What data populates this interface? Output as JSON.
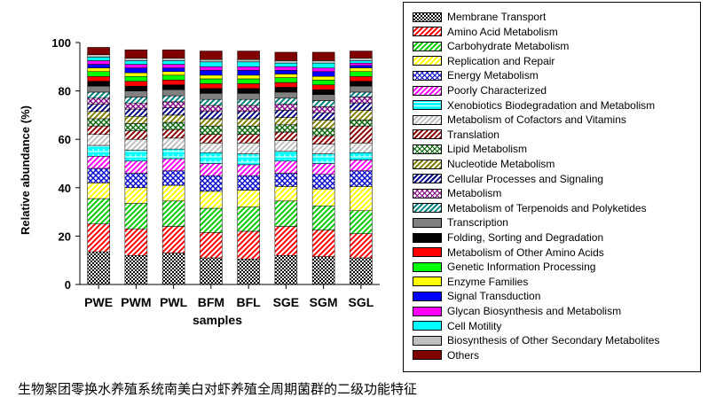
{
  "chart_data": {
    "type": "bar",
    "stacked": true,
    "xlabel": "samples",
    "ylabel": "Relative abundance (%)",
    "ylim": [
      0,
      100
    ],
    "yticks": [
      0,
      20,
      40,
      60,
      80,
      100
    ],
    "categories": [
      "PWE",
      "PWM",
      "PWL",
      "BFM",
      "BFL",
      "SGE",
      "SGM",
      "SGL"
    ],
    "legend_position": "right",
    "series": [
      {
        "name": "Membrane Transport",
        "color": "#000000",
        "pattern": "checker",
        "values": [
          13.5,
          12.0,
          13.0,
          11.0,
          10.5,
          12.0,
          11.5,
          11.0
        ]
      },
      {
        "name": "Amino Acid Metabolism",
        "color": "#ff0000",
        "pattern": "diag",
        "values": [
          11.5,
          11.0,
          11.0,
          10.5,
          11.5,
          12.0,
          11.0,
          10.0
        ]
      },
      {
        "name": "Carbohydrate Metabolism",
        "color": "#00cc00",
        "pattern": "diag",
        "values": [
          10.5,
          10.5,
          10.5,
          10.0,
          10.0,
          10.5,
          10.0,
          9.5
        ]
      },
      {
        "name": "Replication and Repair",
        "color": "#ffff00",
        "pattern": "diag",
        "values": [
          6.5,
          6.5,
          6.5,
          7.0,
          7.0,
          6.0,
          7.0,
          10.0
        ]
      },
      {
        "name": "Energy Metabolism",
        "color": "#0000cc",
        "pattern": "cross",
        "values": [
          6.0,
          6.0,
          6.0,
          6.5,
          6.0,
          5.5,
          6.0,
          6.5
        ]
      },
      {
        "name": "Poorly Characterized",
        "color": "#ff00ff",
        "pattern": "diag",
        "values": [
          5.0,
          5.0,
          5.0,
          5.0,
          4.5,
          5.0,
          4.5,
          4.5
        ]
      },
      {
        "name": "Xenobiotics Biodegradation and Metabolism",
        "color": "#00ffff",
        "pattern": "bricks",
        "values": [
          4.5,
          4.5,
          4.0,
          4.5,
          4.5,
          4.0,
          4.0,
          3.0
        ]
      },
      {
        "name": "Metabolism of Cofactors and Vitamins",
        "color": "#c0c0c0",
        "pattern": "diag",
        "values": [
          4.5,
          4.5,
          4.5,
          4.0,
          4.5,
          4.5,
          4.0,
          4.0
        ]
      },
      {
        "name": "Translation",
        "color": "#8b0000",
        "pattern": "diag",
        "values": [
          3.5,
          3.5,
          3.5,
          3.5,
          3.5,
          3.5,
          3.5,
          7.0
        ]
      },
      {
        "name": "Lipid Metabolism",
        "color": "#006400",
        "pattern": "cross",
        "values": [
          3.0,
          3.0,
          3.0,
          3.5,
          3.5,
          3.0,
          3.0,
          2.5
        ]
      },
      {
        "name": "Nucleotide Metabolism",
        "color": "#808000",
        "pattern": "diag",
        "values": [
          3.0,
          3.0,
          3.0,
          3.0,
          3.0,
          3.0,
          3.5,
          4.0
        ]
      },
      {
        "name": "Cellular Processes and Signaling",
        "color": "#000080",
        "pattern": "diag",
        "values": [
          3.0,
          3.0,
          3.0,
          3.0,
          3.0,
          3.0,
          3.0,
          3.0
        ]
      },
      {
        "name": "Metabolism",
        "color": "#800080",
        "pattern": "cross",
        "values": [
          2.5,
          2.5,
          2.5,
          2.5,
          2.5,
          2.5,
          2.5,
          2.5
        ]
      },
      {
        "name": "Metabolism of Terpenoids and Polyketides",
        "color": "#008080",
        "pattern": "diag",
        "values": [
          2.5,
          2.5,
          2.5,
          2.5,
          2.5,
          2.5,
          2.5,
          2.0
        ]
      },
      {
        "name": "Transcription",
        "color": "#808080",
        "pattern": "solid",
        "values": [
          2.5,
          2.5,
          2.5,
          2.5,
          2.5,
          2.5,
          2.5,
          2.5
        ]
      },
      {
        "name": "Folding, Sorting and Degradation",
        "color": "#000000",
        "pattern": "solid",
        "values": [
          2.0,
          2.0,
          2.0,
          2.0,
          2.0,
          2.0,
          2.0,
          2.0
        ]
      },
      {
        "name": "Metabolism of Other Amino Acids",
        "color": "#ff0000",
        "pattern": "solid",
        "values": [
          2.0,
          2.0,
          2.0,
          2.0,
          2.0,
          2.0,
          2.0,
          2.0
        ]
      },
      {
        "name": "Genetic Information Processing",
        "color": "#00ff00",
        "pattern": "solid",
        "values": [
          2.0,
          2.0,
          2.0,
          2.0,
          2.0,
          2.0,
          2.0,
          2.0
        ]
      },
      {
        "name": "Enzyme Families",
        "color": "#ffff00",
        "pattern": "solid",
        "values": [
          1.5,
          1.5,
          1.5,
          1.5,
          1.5,
          1.5,
          1.5,
          1.5
        ]
      },
      {
        "name": "Signal Transduction",
        "color": "#0000ff",
        "pattern": "solid",
        "values": [
          1.5,
          2.0,
          1.5,
          2.0,
          2.0,
          1.5,
          2.0,
          1.0
        ]
      },
      {
        "name": "Glycan Biosynthesis and Metabolism",
        "color": "#ff00ff",
        "pattern": "solid",
        "values": [
          1.5,
          1.5,
          1.5,
          1.5,
          1.5,
          1.5,
          1.5,
          1.0
        ]
      },
      {
        "name": "Cell Motility",
        "color": "#00ffff",
        "pattern": "solid",
        "values": [
          1.5,
          1.5,
          1.5,
          2.0,
          2.0,
          1.5,
          2.0,
          1.0
        ]
      },
      {
        "name": "Biosynthesis of Other Secondary Metabolites",
        "color": "#c0c0c0",
        "pattern": "solid",
        "values": [
          1.0,
          1.0,
          1.0,
          1.0,
          1.0,
          1.0,
          1.0,
          1.0
        ]
      },
      {
        "name": "Others",
        "color": "#800000",
        "pattern": "solid",
        "values": [
          3.0,
          3.5,
          3.5,
          3.5,
          3.5,
          3.5,
          3.5,
          3.0
        ]
      }
    ]
  },
  "caption": "生物絮团零换水养殖系统南美白对虾养殖全周期菌群的二级功能特征"
}
